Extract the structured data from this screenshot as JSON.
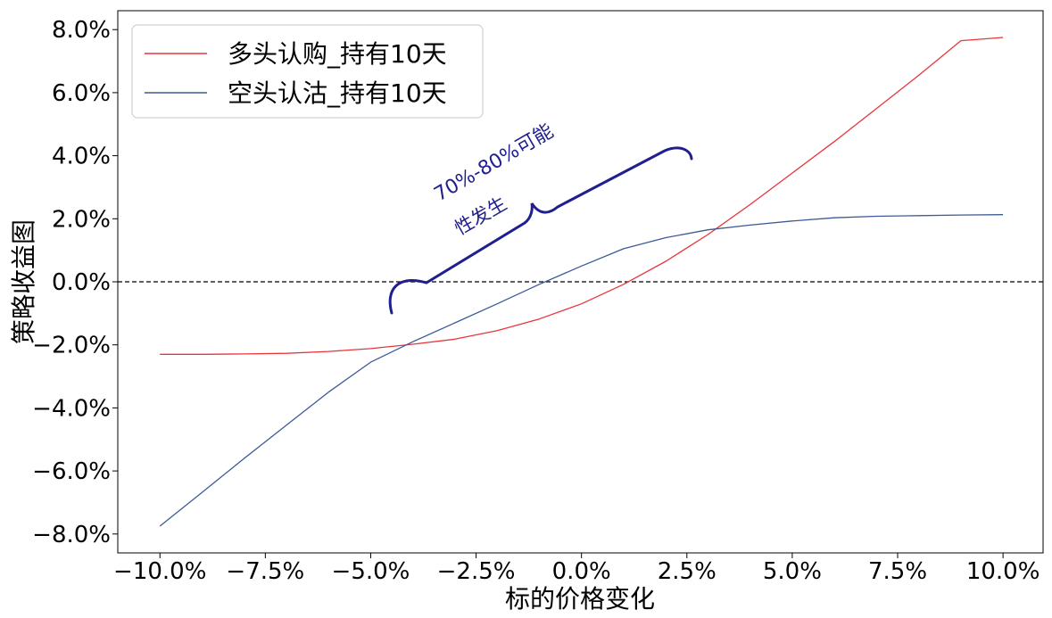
{
  "chart_data": {
    "type": "line",
    "title": "",
    "xlabel": "标的价格变化",
    "ylabel": "策略收益图",
    "xlim": [
      -11.0,
      10.95
    ],
    "ylim": [
      -8.6,
      8.6
    ],
    "x_ticks": [
      -10.0,
      -7.5,
      -5.0,
      -2.5,
      0.0,
      2.5,
      5.0,
      7.5,
      10.0
    ],
    "x_tick_labels": [
      "−10.0%",
      "−7.5%",
      "−5.0%",
      "−2.5%",
      "0.0%",
      "2.5%",
      "5.0%",
      "7.5%",
      "10.0%"
    ],
    "y_ticks": [
      8,
      6,
      4,
      2,
      0,
      -2,
      -4,
      -6,
      -8
    ],
    "y_tick_labels": [
      "8.0%",
      "6.0%",
      "4.0%",
      "2.0%",
      "0.0%",
      "−2.0%",
      "−4.0%",
      "−6.0%",
      "−8.0%"
    ],
    "grid": false,
    "legend_position": "top-left",
    "reference_line": {
      "y": 0,
      "style": "dashed",
      "color": "#000000"
    },
    "series": [
      {
        "name": "多头认购_持有10天",
        "color": "#e8353b",
        "x": [
          -10,
          -9,
          -8,
          -7,
          -6,
          -5,
          -4,
          -3,
          -2,
          -1,
          0,
          1,
          2,
          3,
          4,
          5,
          6,
          7,
          8,
          9,
          10
        ],
        "y": [
          -2.3,
          -2.3,
          -2.29,
          -2.27,
          -2.21,
          -2.12,
          -1.98,
          -1.82,
          -1.55,
          -1.18,
          -0.7,
          -0.08,
          0.65,
          1.5,
          2.45,
          3.45,
          4.45,
          5.5,
          6.55,
          7.65,
          7.75
        ]
      },
      {
        "name": "空头认沽_持有10天",
        "color": "#3d5a96",
        "x": [
          -10,
          -9,
          -8,
          -7,
          -6,
          -5,
          -4,
          -3,
          -2,
          -1,
          0,
          1,
          2,
          3,
          4,
          5,
          6,
          7,
          8,
          9,
          10
        ],
        "y": [
          -7.75,
          -6.68,
          -5.6,
          -4.55,
          -3.5,
          -2.55,
          -1.9,
          -1.3,
          -0.7,
          -0.08,
          0.5,
          1.05,
          1.4,
          1.65,
          1.8,
          1.93,
          2.03,
          2.08,
          2.1,
          2.12,
          2.13
        ]
      }
    ],
    "annotations": [
      {
        "text": "70%-80%可能",
        "color": "#1f1f8f"
      },
      {
        "text": "性发生",
        "color": "#1f1f8f"
      }
    ]
  }
}
